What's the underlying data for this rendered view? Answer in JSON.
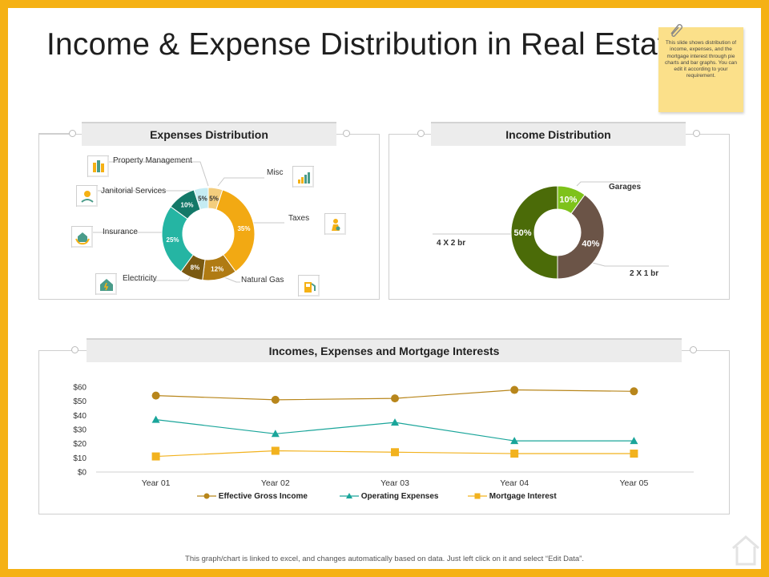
{
  "title": "Income & Expense Distribution in Real Estate",
  "note": "This slide shows distribution of income, expenses, and the mortgage interest through pie charts and bar graphs. You can edit it according to your requirement.",
  "footer": "This graph/chart is linked to excel, and changes automatically based on data. Just left click on it and select “Edit Data”.",
  "panels": {
    "expenses_title": "Expenses Distribution",
    "income_title": "Income Distribution",
    "line_title": "Incomes, Expenses and Mortgage Interests"
  },
  "expenses": {
    "labels": [
      "Property Management",
      "Janitorial Services",
      "Insurance",
      "Electricity",
      "Misc",
      "Taxes",
      "Natural Gas"
    ]
  },
  "income": {
    "labels": [
      "Garages",
      "4 X 2 br",
      "2 X 1 br"
    ]
  },
  "chart_data": [
    {
      "type": "pie",
      "title": "Expenses Distribution",
      "donut": true,
      "slices": [
        {
          "label": "Misc",
          "value": 5,
          "display": "5%",
          "color": "#f3cd7d"
        },
        {
          "label": "Taxes",
          "value": 35,
          "display": "35%",
          "color": "#f2a913"
        },
        {
          "label": "Natural Gas",
          "value": 12,
          "display": "12%",
          "color": "#b07b13"
        },
        {
          "label": "Electricity",
          "value": 8,
          "display": "8%",
          "color": "#7a5a12"
        },
        {
          "label": "Insurance",
          "value": 25,
          "display": "25%",
          "color": "#25b5a3"
        },
        {
          "label": "Janitorial Services",
          "value": 10,
          "display": "10%",
          "color": "#137868"
        },
        {
          "label": "Property Management",
          "value": 5,
          "display": "5%",
          "color": "#c5ecf3"
        }
      ]
    },
    {
      "type": "pie",
      "title": "Income Distribution",
      "donut": true,
      "slices": [
        {
          "label": "Garages",
          "value": 10,
          "display": "10%",
          "color": "#7ec21a"
        },
        {
          "label": "2 X 1 br",
          "value": 40,
          "display": "40%",
          "color": "#6b5447"
        },
        {
          "label": "4 X 2 br",
          "value": 50,
          "display": "50%",
          "color": "#4b6b08"
        }
      ]
    },
    {
      "type": "line",
      "title": "Incomes, Expenses and Mortgage Interests",
      "categories": [
        "Year 01",
        "Year 02",
        "Year 03",
        "Year 04",
        "Year 05"
      ],
      "ylim": [
        0,
        60
      ],
      "yticks": [
        "$0",
        "$10",
        "$20",
        "$30",
        "$40",
        "$50",
        "$60"
      ],
      "series": [
        {
          "name": "Effective Gross Income",
          "values": [
            54,
            51,
            52,
            58,
            57
          ],
          "color": "#b8861b",
          "marker": "circle"
        },
        {
          "name": "Operating Expenses",
          "values": [
            37,
            27,
            35,
            22,
            22
          ],
          "color": "#1aa59a",
          "marker": "triangle"
        },
        {
          "name": "Mortgage Interest",
          "values": [
            11,
            15,
            14,
            13,
            13
          ],
          "color": "#f2b21e",
          "marker": "square"
        }
      ]
    }
  ]
}
